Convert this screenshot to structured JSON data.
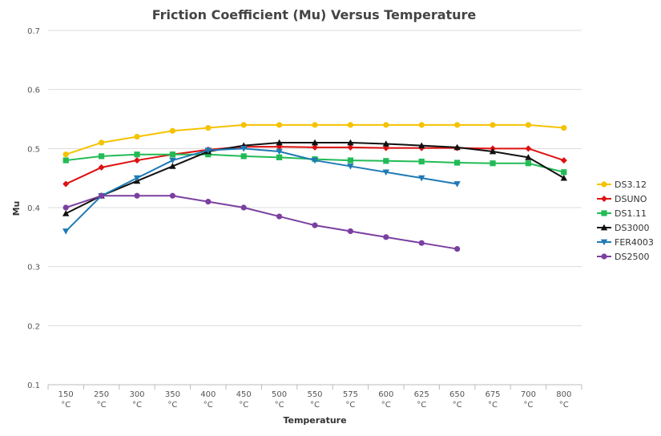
{
  "chart_data": {
    "type": "line",
    "title": "Friction Coefficient (Mu) Versus Temperature",
    "xlabel": "Temperature",
    "ylabel": "Mu",
    "ylim": [
      0.1,
      0.7
    ],
    "yticks": [
      "0.1",
      "0.2",
      "0.3",
      "0.4",
      "0.5",
      "0.6",
      "0.7"
    ],
    "grid": true,
    "legend_position": "right",
    "categories": [
      "150",
      "250",
      "300",
      "350",
      "400",
      "450",
      "500",
      "550",
      "575",
      "600",
      "625",
      "650",
      "675",
      "700",
      "800"
    ],
    "unit": "°C",
    "series": [
      {
        "name": "DS3.12",
        "color": "#f5c200",
        "marker": "circle",
        "values": [
          0.49,
          0.51,
          0.52,
          0.53,
          0.535,
          0.54,
          0.54,
          0.54,
          0.54,
          0.54,
          0.54,
          0.54,
          0.54,
          0.54,
          0.535
        ]
      },
      {
        "name": "DSUNO",
        "color": "#dd1111",
        "marker": "diamond",
        "values": [
          0.44,
          0.468,
          0.48,
          0.49,
          0.498,
          0.503,
          0.503,
          0.502,
          0.502,
          0.501,
          0.501,
          0.501,
          0.5,
          0.5,
          0.48
        ]
      },
      {
        "name": "DS1.11",
        "color": "#22bb55",
        "marker": "square",
        "values": [
          0.48,
          0.487,
          0.49,
          0.49,
          0.49,
          0.487,
          0.485,
          0.482,
          0.48,
          0.479,
          0.478,
          0.476,
          0.475,
          0.475,
          0.46
        ]
      },
      {
        "name": "DS3000",
        "color": "#111111",
        "marker": "triangle",
        "values": [
          0.39,
          0.42,
          0.445,
          0.47,
          0.495,
          0.505,
          0.51,
          0.51,
          0.51,
          0.508,
          0.505,
          0.502,
          0.495,
          0.485,
          0.45
        ]
      },
      {
        "name": "FER4003",
        "color": "#1f7ab5",
        "marker": "triangle-down",
        "values": [
          0.36,
          0.42,
          0.45,
          0.48,
          0.497,
          0.5,
          0.495,
          0.48,
          0.47,
          0.46,
          0.45,
          0.44,
          null,
          null,
          null
        ]
      },
      {
        "name": "DS2500",
        "color": "#7b3fa0",
        "marker": "circle",
        "values": [
          0.4,
          0.42,
          0.42,
          0.42,
          0.41,
          0.4,
          0.385,
          0.37,
          0.36,
          0.35,
          0.34,
          0.33,
          null,
          null,
          null
        ]
      }
    ]
  }
}
